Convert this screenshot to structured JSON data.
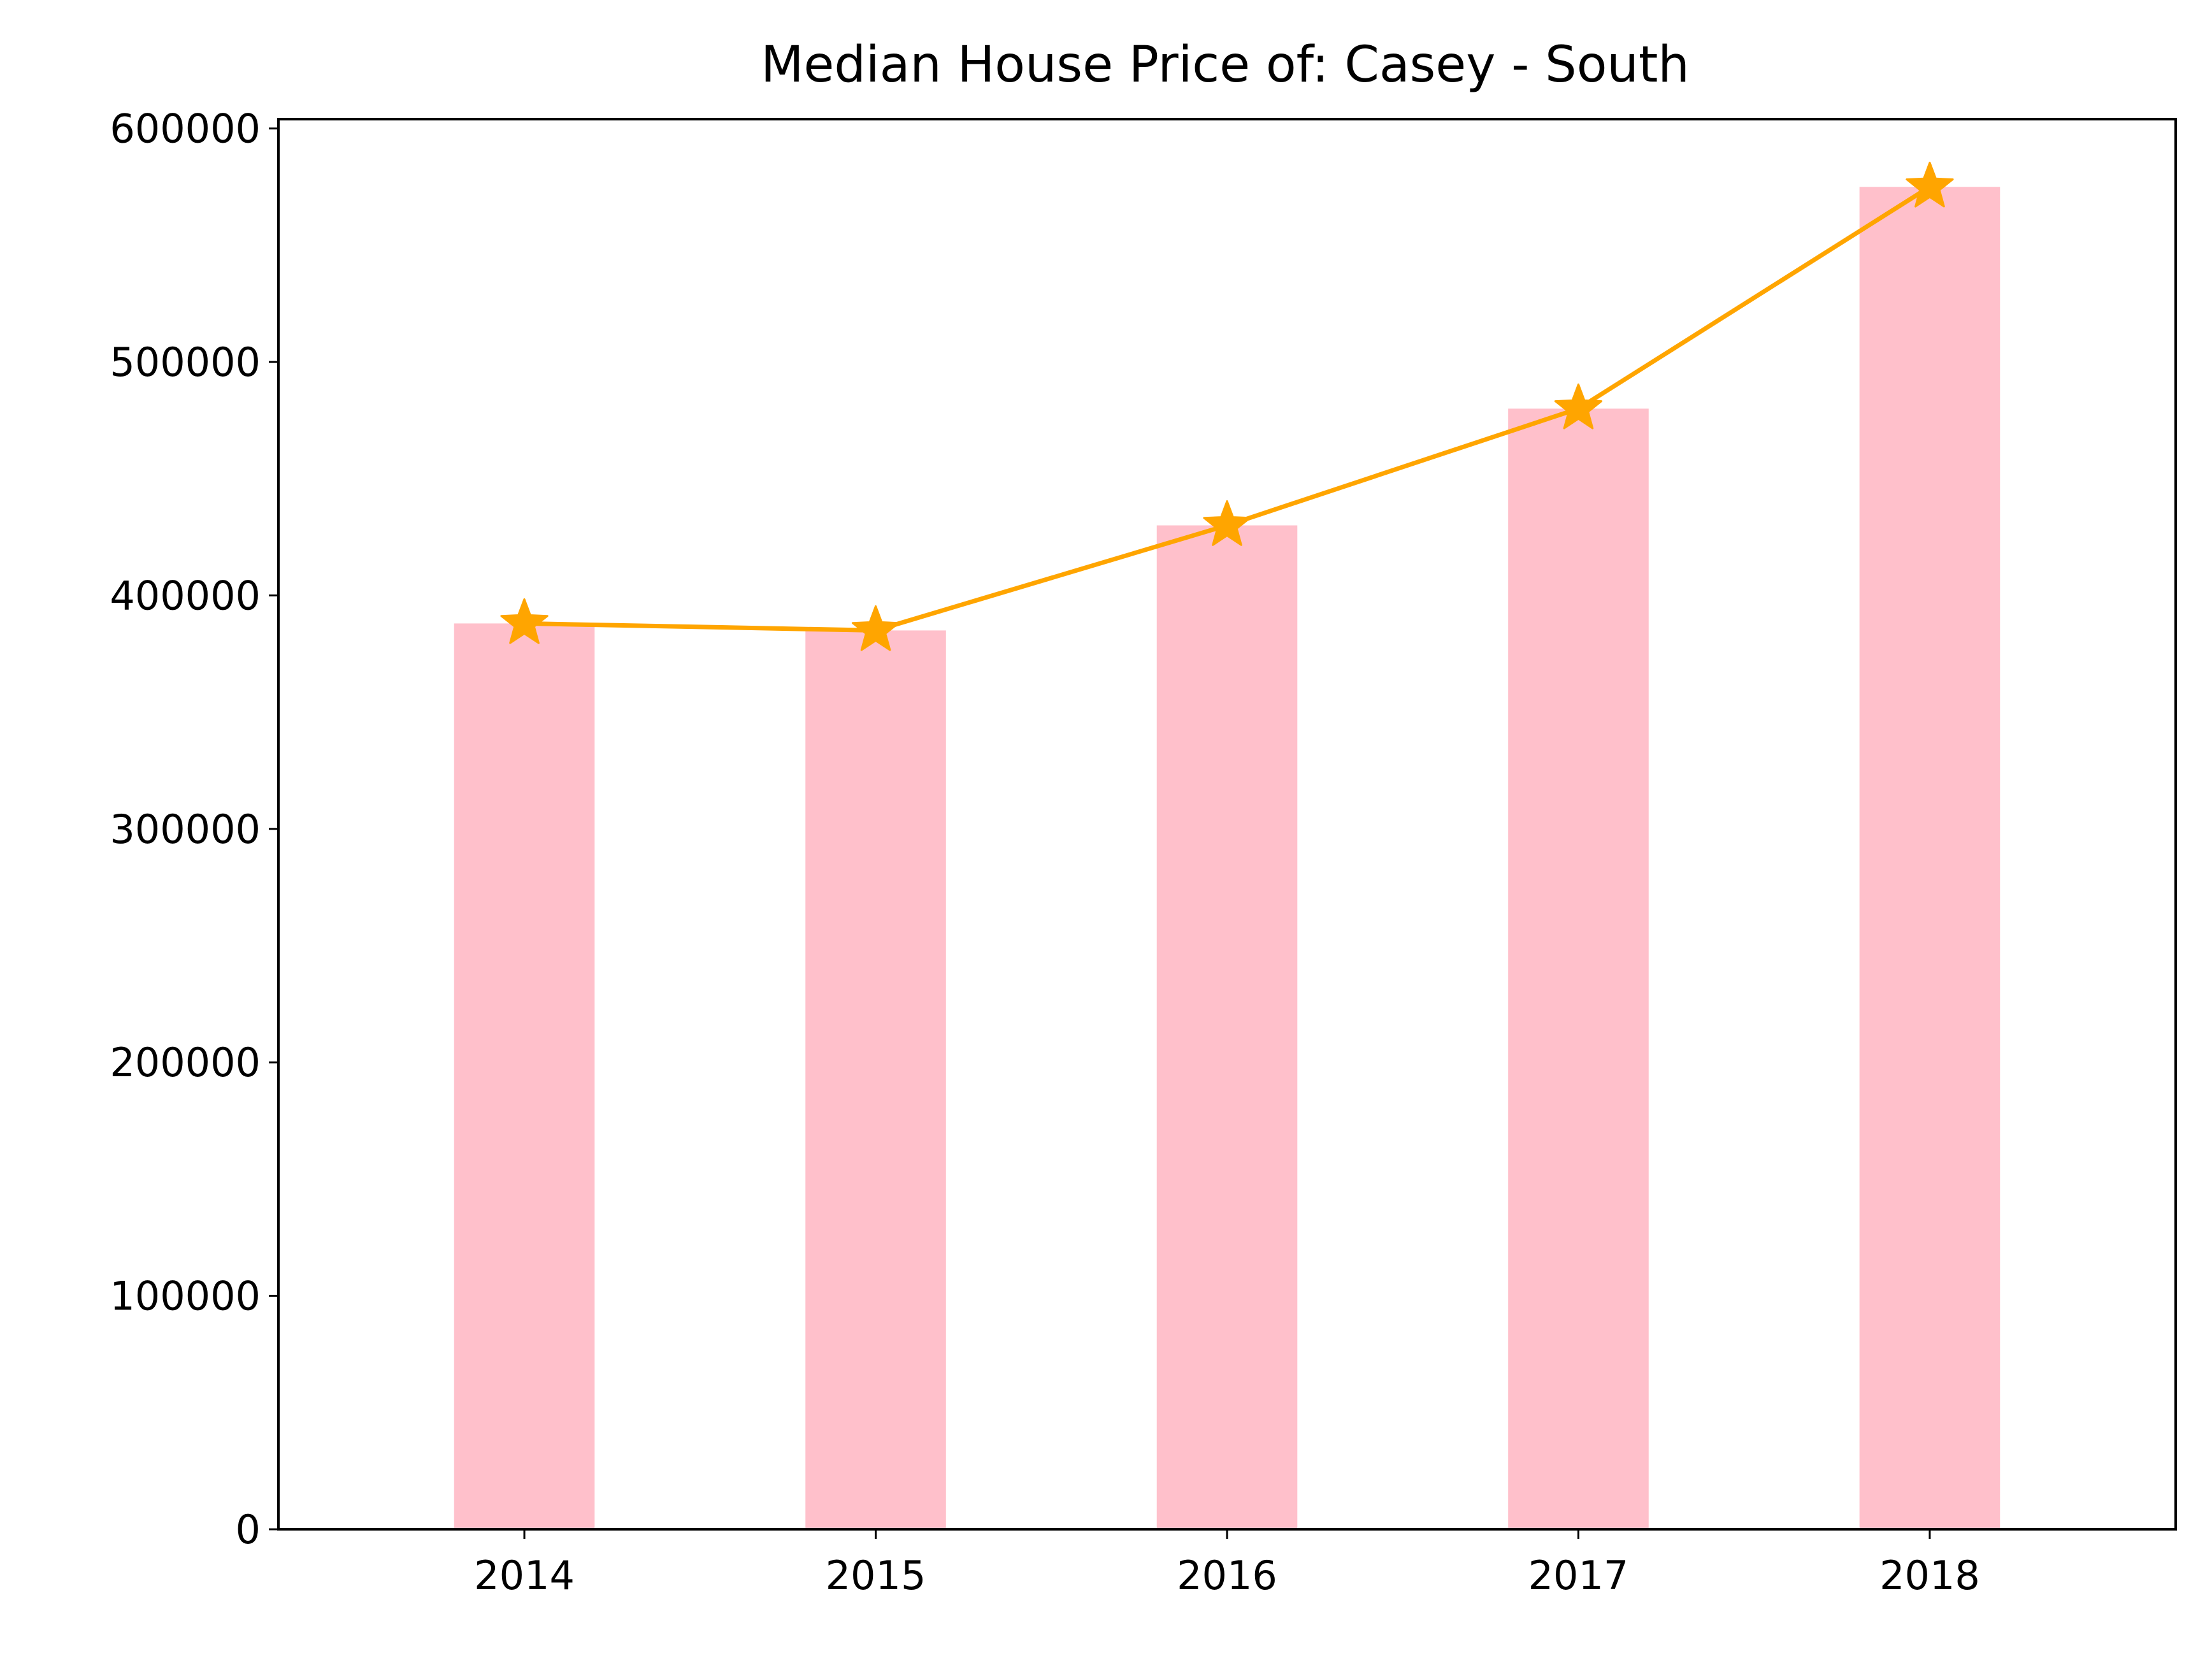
{
  "chart_data": {
    "type": "bar",
    "title": "Median House Price of: Casey - South",
    "xlabel": "",
    "ylabel": "",
    "categories": [
      "2014",
      "2015",
      "2016",
      "2017",
      "2018"
    ],
    "series": [
      {
        "type": "bar",
        "values": [
          388000,
          385000,
          430000,
          480000,
          575000
        ],
        "color": "#ffc0cb"
      },
      {
        "type": "line",
        "marker": "star",
        "values": [
          388000,
          385000,
          430000,
          480000,
          575000
        ],
        "color": "#ffa500"
      }
    ],
    "ylim": [
      0,
      604000
    ],
    "yticks": [
      0,
      100000,
      200000,
      300000,
      400000,
      500000,
      600000
    ],
    "ytick_labels": [
      "0",
      "100000",
      "200000",
      "300000",
      "400000",
      "500000",
      "600000"
    ],
    "grid": false,
    "legend": "none"
  }
}
